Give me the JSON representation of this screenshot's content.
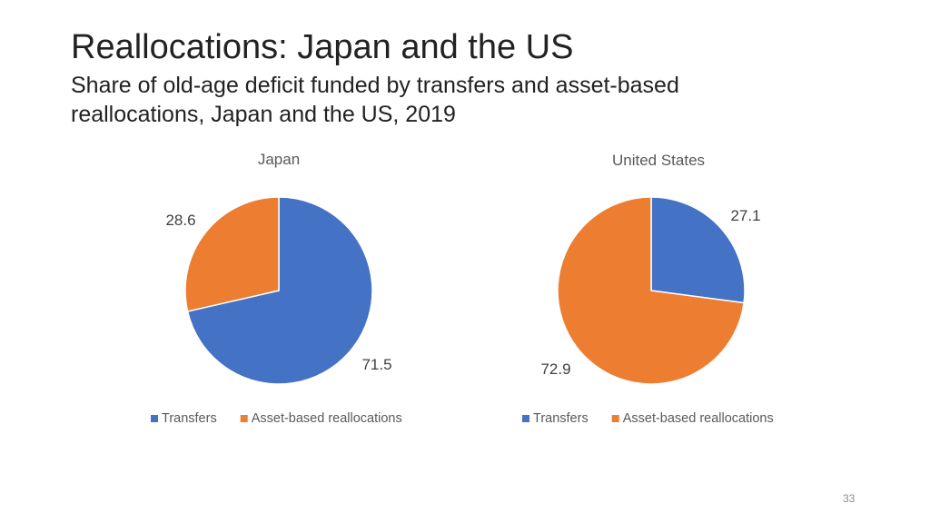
{
  "slide": {
    "title": "Reallocations: Japan and the US",
    "subtitle": "Share of old-age deficit funded by transfers and asset-based reallocations, Japan and the US, 2019",
    "page_number": "33"
  },
  "colors": {
    "transfers": "#4472C4",
    "asset_based": "#ED7D31"
  },
  "chart_data": [
    {
      "type": "pie",
      "title": "Japan",
      "slices": [
        {
          "name": "Transfers",
          "value": 71.5,
          "label": "71.5",
          "color": "#4472C4"
        },
        {
          "name": "Asset-based reallocations",
          "value": 28.6,
          "label": "28.6",
          "color": "#ED7D31"
        }
      ],
      "legend": [
        "Transfers",
        "Asset-based reallocations"
      ],
      "legend_position": "bottom"
    },
    {
      "type": "pie",
      "title": "United States",
      "slices": [
        {
          "name": "Transfers",
          "value": 27.1,
          "label": "27.1",
          "color": "#4472C4"
        },
        {
          "name": "Asset-based reallocations",
          "value": 72.9,
          "label": "72.9",
          "color": "#ED7D31"
        }
      ],
      "legend": [
        "Transfers",
        "Asset-based reallocations"
      ],
      "legend_position": "bottom"
    }
  ]
}
